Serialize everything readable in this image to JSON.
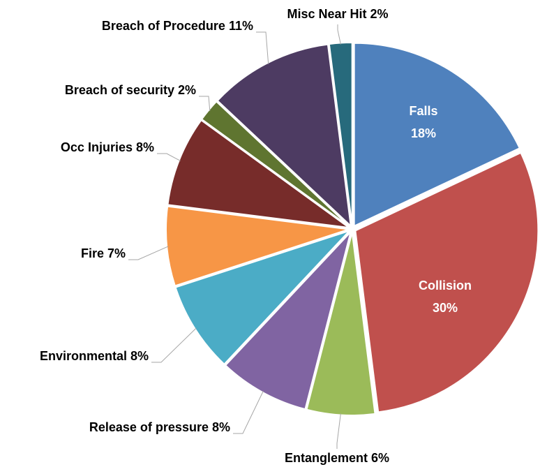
{
  "chart_data": {
    "type": "pie",
    "categories": [
      "Falls",
      "Collision",
      "Entanglement",
      "Release of pressure",
      "Environmental",
      "Fire",
      "Occ Injuries",
      "Breach of security",
      "Breach of Procedure",
      "Misc Near Hit"
    ],
    "values": [
      18,
      30,
      6,
      8,
      8,
      7,
      8,
      2,
      11,
      2
    ],
    "value_labels": [
      "18%",
      "30%",
      "6%",
      "8%",
      "8%",
      "7%",
      "8%",
      "2%",
      "11%",
      "2%"
    ],
    "colors": [
      "#4f81bd",
      "#c0504d",
      "#9bbb59",
      "#8064a2",
      "#4bacc6",
      "#f79646",
      "#772c2a",
      "#5f7530",
      "#4d3b62",
      "#276a7c"
    ]
  }
}
